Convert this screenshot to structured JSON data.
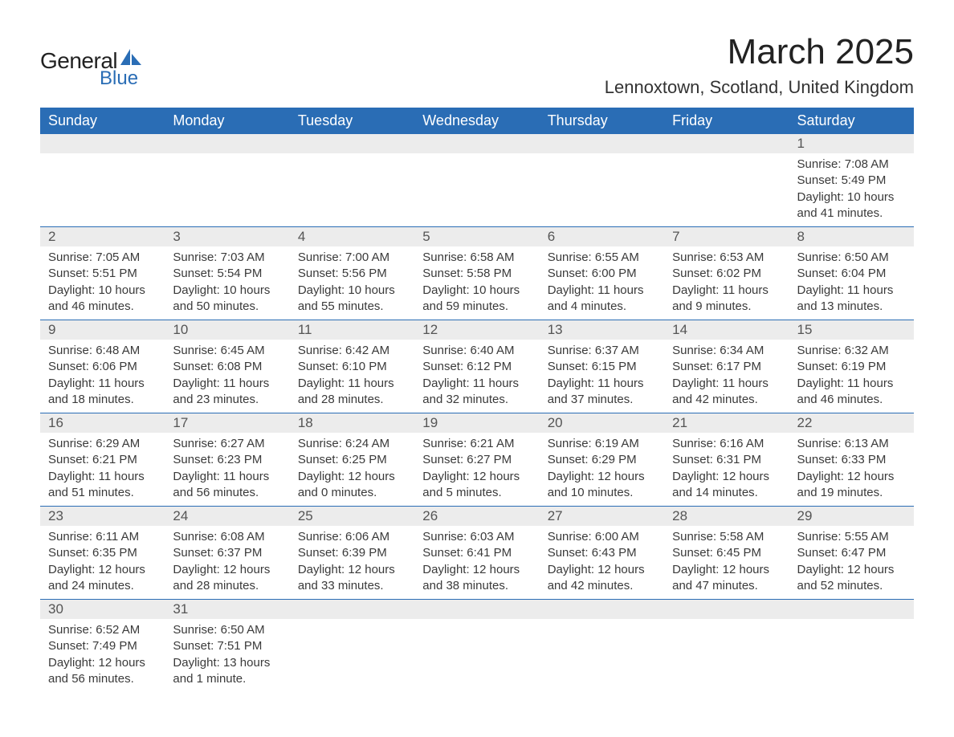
{
  "logo": {
    "main": "General",
    "sub": "Blue",
    "icon_color": "#2a6db5"
  },
  "title": "March 2025",
  "location": "Lennoxtown, Scotland, United Kingdom",
  "colors": {
    "header_bg": "#2a6db5",
    "header_text": "#ffffff",
    "daynum_bg": "#ececec",
    "daynum_text": "#555555",
    "body_text": "#3a3a3a",
    "row_border": "#2a6db5"
  },
  "layout": {
    "columns": 7,
    "fonts": {
      "title_pt": 44,
      "location_pt": 22,
      "th_pt": 18,
      "daynum_pt": 17,
      "body_pt": 15
    }
  },
  "day_headers": [
    "Sunday",
    "Monday",
    "Tuesday",
    "Wednesday",
    "Thursday",
    "Friday",
    "Saturday"
  ],
  "weeks": [
    [
      null,
      null,
      null,
      null,
      null,
      null,
      {
        "n": "1",
        "sr": "Sunrise: 7:08 AM",
        "ss": "Sunset: 5:49 PM",
        "d1": "Daylight: 10 hours",
        "d2": "and 41 minutes."
      }
    ],
    [
      {
        "n": "2",
        "sr": "Sunrise: 7:05 AM",
        "ss": "Sunset: 5:51 PM",
        "d1": "Daylight: 10 hours",
        "d2": "and 46 minutes."
      },
      {
        "n": "3",
        "sr": "Sunrise: 7:03 AM",
        "ss": "Sunset: 5:54 PM",
        "d1": "Daylight: 10 hours",
        "d2": "and 50 minutes."
      },
      {
        "n": "4",
        "sr": "Sunrise: 7:00 AM",
        "ss": "Sunset: 5:56 PM",
        "d1": "Daylight: 10 hours",
        "d2": "and 55 minutes."
      },
      {
        "n": "5",
        "sr": "Sunrise: 6:58 AM",
        "ss": "Sunset: 5:58 PM",
        "d1": "Daylight: 10 hours",
        "d2": "and 59 minutes."
      },
      {
        "n": "6",
        "sr": "Sunrise: 6:55 AM",
        "ss": "Sunset: 6:00 PM",
        "d1": "Daylight: 11 hours",
        "d2": "and 4 minutes."
      },
      {
        "n": "7",
        "sr": "Sunrise: 6:53 AM",
        "ss": "Sunset: 6:02 PM",
        "d1": "Daylight: 11 hours",
        "d2": "and 9 minutes."
      },
      {
        "n": "8",
        "sr": "Sunrise: 6:50 AM",
        "ss": "Sunset: 6:04 PM",
        "d1": "Daylight: 11 hours",
        "d2": "and 13 minutes."
      }
    ],
    [
      {
        "n": "9",
        "sr": "Sunrise: 6:48 AM",
        "ss": "Sunset: 6:06 PM",
        "d1": "Daylight: 11 hours",
        "d2": "and 18 minutes."
      },
      {
        "n": "10",
        "sr": "Sunrise: 6:45 AM",
        "ss": "Sunset: 6:08 PM",
        "d1": "Daylight: 11 hours",
        "d2": "and 23 minutes."
      },
      {
        "n": "11",
        "sr": "Sunrise: 6:42 AM",
        "ss": "Sunset: 6:10 PM",
        "d1": "Daylight: 11 hours",
        "d2": "and 28 minutes."
      },
      {
        "n": "12",
        "sr": "Sunrise: 6:40 AM",
        "ss": "Sunset: 6:12 PM",
        "d1": "Daylight: 11 hours",
        "d2": "and 32 minutes."
      },
      {
        "n": "13",
        "sr": "Sunrise: 6:37 AM",
        "ss": "Sunset: 6:15 PM",
        "d1": "Daylight: 11 hours",
        "d2": "and 37 minutes."
      },
      {
        "n": "14",
        "sr": "Sunrise: 6:34 AM",
        "ss": "Sunset: 6:17 PM",
        "d1": "Daylight: 11 hours",
        "d2": "and 42 minutes."
      },
      {
        "n": "15",
        "sr": "Sunrise: 6:32 AM",
        "ss": "Sunset: 6:19 PM",
        "d1": "Daylight: 11 hours",
        "d2": "and 46 minutes."
      }
    ],
    [
      {
        "n": "16",
        "sr": "Sunrise: 6:29 AM",
        "ss": "Sunset: 6:21 PM",
        "d1": "Daylight: 11 hours",
        "d2": "and 51 minutes."
      },
      {
        "n": "17",
        "sr": "Sunrise: 6:27 AM",
        "ss": "Sunset: 6:23 PM",
        "d1": "Daylight: 11 hours",
        "d2": "and 56 minutes."
      },
      {
        "n": "18",
        "sr": "Sunrise: 6:24 AM",
        "ss": "Sunset: 6:25 PM",
        "d1": "Daylight: 12 hours",
        "d2": "and 0 minutes."
      },
      {
        "n": "19",
        "sr": "Sunrise: 6:21 AM",
        "ss": "Sunset: 6:27 PM",
        "d1": "Daylight: 12 hours",
        "d2": "and 5 minutes."
      },
      {
        "n": "20",
        "sr": "Sunrise: 6:19 AM",
        "ss": "Sunset: 6:29 PM",
        "d1": "Daylight: 12 hours",
        "d2": "and 10 minutes."
      },
      {
        "n": "21",
        "sr": "Sunrise: 6:16 AM",
        "ss": "Sunset: 6:31 PM",
        "d1": "Daylight: 12 hours",
        "d2": "and 14 minutes."
      },
      {
        "n": "22",
        "sr": "Sunrise: 6:13 AM",
        "ss": "Sunset: 6:33 PM",
        "d1": "Daylight: 12 hours",
        "d2": "and 19 minutes."
      }
    ],
    [
      {
        "n": "23",
        "sr": "Sunrise: 6:11 AM",
        "ss": "Sunset: 6:35 PM",
        "d1": "Daylight: 12 hours",
        "d2": "and 24 minutes."
      },
      {
        "n": "24",
        "sr": "Sunrise: 6:08 AM",
        "ss": "Sunset: 6:37 PM",
        "d1": "Daylight: 12 hours",
        "d2": "and 28 minutes."
      },
      {
        "n": "25",
        "sr": "Sunrise: 6:06 AM",
        "ss": "Sunset: 6:39 PM",
        "d1": "Daylight: 12 hours",
        "d2": "and 33 minutes."
      },
      {
        "n": "26",
        "sr": "Sunrise: 6:03 AM",
        "ss": "Sunset: 6:41 PM",
        "d1": "Daylight: 12 hours",
        "d2": "and 38 minutes."
      },
      {
        "n": "27",
        "sr": "Sunrise: 6:00 AM",
        "ss": "Sunset: 6:43 PM",
        "d1": "Daylight: 12 hours",
        "d2": "and 42 minutes."
      },
      {
        "n": "28",
        "sr": "Sunrise: 5:58 AM",
        "ss": "Sunset: 6:45 PM",
        "d1": "Daylight: 12 hours",
        "d2": "and 47 minutes."
      },
      {
        "n": "29",
        "sr": "Sunrise: 5:55 AM",
        "ss": "Sunset: 6:47 PM",
        "d1": "Daylight: 12 hours",
        "d2": "and 52 minutes."
      }
    ],
    [
      {
        "n": "30",
        "sr": "Sunrise: 6:52 AM",
        "ss": "Sunset: 7:49 PM",
        "d1": "Daylight: 12 hours",
        "d2": "and 56 minutes."
      },
      {
        "n": "31",
        "sr": "Sunrise: 6:50 AM",
        "ss": "Sunset: 7:51 PM",
        "d1": "Daylight: 13 hours",
        "d2": "and 1 minute."
      },
      null,
      null,
      null,
      null,
      null
    ]
  ]
}
